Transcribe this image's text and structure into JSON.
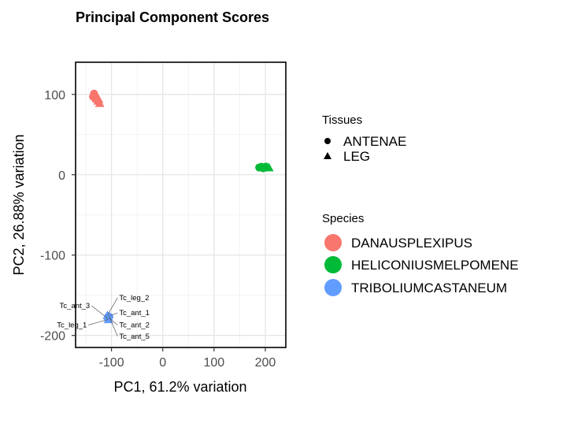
{
  "chart_data": {
    "type": "scatter",
    "title": "Principal Component Scores",
    "xlabel": "PC1, 61.2% variation",
    "ylabel": "PC2, 26.88% variation",
    "xlim": [
      -170,
      240
    ],
    "ylim": [
      -215,
      140
    ],
    "x_ticks": [
      -100,
      0,
      100,
      200
    ],
    "x_tick_labels": [
      "-100",
      "0",
      "100",
      "200"
    ],
    "y_ticks": [
      -200,
      -100,
      0,
      100
    ],
    "y_tick_labels": [
      "-200",
      "-100",
      "0",
      "100"
    ],
    "grid": true,
    "legend_position": "right",
    "tissue_legend": {
      "title": "Tissues",
      "items": [
        {
          "label": "ANTENAE",
          "shape": "circle"
        },
        {
          "label": "LEG",
          "shape": "triangle"
        }
      ]
    },
    "species_legend": {
      "title": "Species",
      "items": [
        {
          "label": "DANAUSPLEXIPUS",
          "color": "#F8766D"
        },
        {
          "label": "HELICONIUSMELPOMENE",
          "color": "#00BA38"
        },
        {
          "label": "TRIBOLIUMCASTANEUM",
          "color": "#619CFF"
        }
      ]
    },
    "series": [
      {
        "name": "DANAUSPLEXIPUS",
        "color": "#F8766D",
        "points": [
          {
            "x": -134,
            "y": 101,
            "shape": "circle"
          },
          {
            "x": -136,
            "y": 97,
            "shape": "circle"
          },
          {
            "x": -131,
            "y": 94,
            "shape": "circle"
          },
          {
            "x": -133,
            "y": 99,
            "shape": "circle"
          },
          {
            "x": -126,
            "y": 92,
            "shape": "triangle"
          },
          {
            "x": -129,
            "y": 95,
            "shape": "triangle"
          },
          {
            "x": -123,
            "y": 89,
            "shape": "triangle"
          },
          {
            "x": -125,
            "y": 94,
            "shape": "triangle"
          }
        ]
      },
      {
        "name": "HELICONIUSMELPOMENE",
        "color": "#00BA38",
        "points": [
          {
            "x": 188,
            "y": 9,
            "shape": "circle"
          },
          {
            "x": 192,
            "y": 10,
            "shape": "circle"
          },
          {
            "x": 196,
            "y": 8,
            "shape": "circle"
          },
          {
            "x": 200,
            "y": 10,
            "shape": "circle"
          },
          {
            "x": 203,
            "y": 10,
            "shape": "triangle"
          },
          {
            "x": 198,
            "y": 9,
            "shape": "triangle"
          },
          {
            "x": 207,
            "y": 9,
            "shape": "triangle"
          },
          {
            "x": 194,
            "y": 9,
            "shape": "triangle"
          }
        ]
      },
      {
        "name": "TRIBOLIUMCASTANEUM",
        "color": "#619CFF",
        "points": [
          {
            "x": -107,
            "y": -179,
            "shape": "circle",
            "label": "Tc_ant_3",
            "lx": -142,
            "ly": -166,
            "anchor": "end"
          },
          {
            "x": -106,
            "y": -176,
            "shape": "circle",
            "label": "Tc_ant_1",
            "lx": -85,
            "ly": -175,
            "anchor": "start"
          },
          {
            "x": -105,
            "y": -178,
            "shape": "circle",
            "label": "Tc_ant_2",
            "lx": -85,
            "ly": -190,
            "anchor": "start"
          },
          {
            "x": -104,
            "y": -177,
            "shape": "circle",
            "label": "Tc_ant_5",
            "lx": -85,
            "ly": -204,
            "anchor": "start"
          },
          {
            "x": -108,
            "y": -175,
            "shape": "triangle",
            "label": "Tc_leg_2",
            "lx": -85,
            "ly": -156,
            "anchor": "start"
          },
          {
            "x": -106,
            "y": -180,
            "shape": "triangle",
            "label": "Tc_leg_1",
            "lx": -148,
            "ly": -190,
            "anchor": "end"
          }
        ]
      }
    ]
  }
}
